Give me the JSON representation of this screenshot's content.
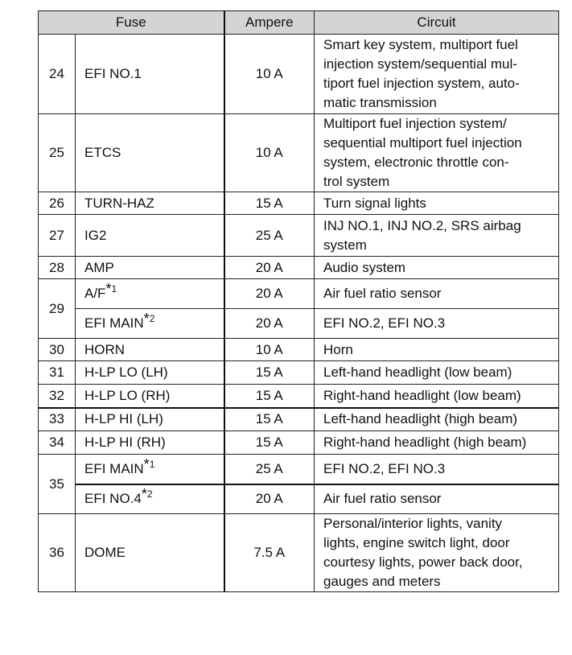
{
  "headers": {
    "fuse": "Fuse",
    "ampere": "Ampere",
    "circuit": "Circuit"
  },
  "rows": [
    {
      "no": "24",
      "items": [
        {
          "name": "EFI NO.1",
          "amp": "10 A",
          "circuit": "Smart key system, multiport fuel\ninjection system/sequential mul-\ntiport fuel injection system, auto-\nmatic transmission"
        }
      ]
    },
    {
      "no": "25",
      "items": [
        {
          "name": "ETCS",
          "amp": "10 A",
          "circuit": "Multiport fuel injection system/\nsequential multiport fuel injection\nsystem, electronic throttle con-\ntrol system"
        }
      ]
    },
    {
      "no": "26",
      "items": [
        {
          "name": "TURN-HAZ",
          "amp": "15 A",
          "circuit": "Turn signal lights"
        }
      ]
    },
    {
      "no": "27",
      "items": [
        {
          "name": "IG2",
          "amp": "25 A",
          "circuit": "INJ NO.1, INJ NO.2, SRS airbag\nsystem"
        }
      ]
    },
    {
      "no": "28",
      "items": [
        {
          "name": "AMP",
          "amp": "20 A",
          "circuit": "Audio system"
        }
      ]
    },
    {
      "no": "29",
      "items": [
        {
          "name": "A/F",
          "note": "1",
          "amp": "20 A",
          "circuit": "Air fuel ratio sensor"
        },
        {
          "name": "EFI MAIN",
          "note": "2",
          "amp": "20 A",
          "circuit": "EFI NO.2, EFI NO.3"
        }
      ]
    },
    {
      "no": "30",
      "items": [
        {
          "name": "HORN",
          "amp": "10 A",
          "circuit": "Horn"
        }
      ]
    },
    {
      "no": "31",
      "items": [
        {
          "name": "H-LP LO (LH)",
          "amp": "15 A",
          "circuit": "Left-hand headlight (low beam)"
        }
      ]
    },
    {
      "no": "32",
      "items": [
        {
          "name": "H-LP LO (RH)",
          "amp": "15 A",
          "circuit": "Right-hand headlight (low beam)"
        }
      ]
    },
    {
      "no": "33",
      "items": [
        {
          "name": "H-LP HI (LH)",
          "amp": "15 A",
          "circuit": "Left-hand headlight (high beam)"
        }
      ]
    },
    {
      "no": "34",
      "items": [
        {
          "name": "H-LP HI (RH)",
          "amp": "15 A",
          "circuit": "Right-hand headlight (high beam)"
        }
      ]
    },
    {
      "no": "35",
      "items": [
        {
          "name": "EFI MAIN",
          "note": "1",
          "amp": "25 A",
          "circuit": "EFI NO.2, EFI NO.3"
        },
        {
          "name": "EFI NO.4",
          "note": "2",
          "amp": "20 A",
          "circuit": "Air fuel ratio sensor"
        }
      ]
    },
    {
      "no": "36",
      "items": [
        {
          "name": "DOME",
          "amp": "7.5 A",
          "circuit": "Personal/interior lights, vanity\nlights, engine switch light, door\ncourtesy lights, power back door,\ngauges and meters"
        }
      ]
    }
  ]
}
